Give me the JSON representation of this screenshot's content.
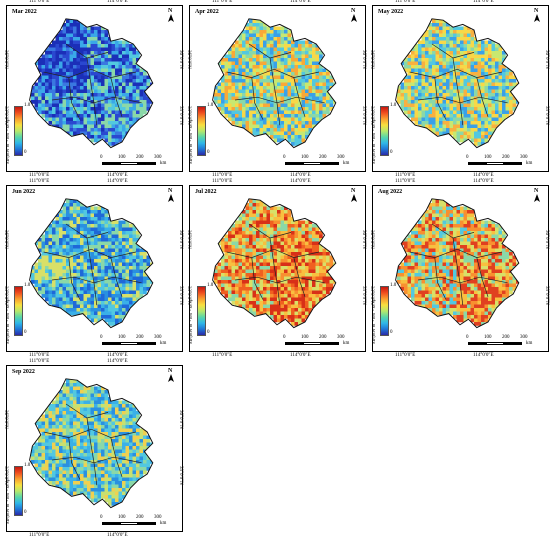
{
  "axes": {
    "top_left": "111°0′0″E",
    "top_right": "114°0′0″E",
    "lat_top": "36°0′0″N",
    "lat_bottom": "33°0′0″N"
  },
  "north_label": "N",
  "legend": {
    "max": "1.0",
    "min": "0",
    "unit": "SIF(mW m⁻² nm⁻¹ sr⁻¹)",
    "colors": [
      "#2a2aa8",
      "#1f78d8",
      "#2fb8e8",
      "#5ad7a8",
      "#b8e86a",
      "#f8e040",
      "#f8a030",
      "#f05020",
      "#c81810"
    ]
  },
  "scale_bar": {
    "ticks": [
      "0",
      "100",
      "200",
      "300"
    ],
    "unit": "km"
  },
  "panels": [
    {
      "title": "Mar 2022",
      "palette": [
        "#1b2fb8",
        "#2a48d0",
        "#3a78e0",
        "#3aa8e8",
        "#52c8e0",
        "#8ad8a8"
      ]
    },
    {
      "title": "Apr 2022",
      "palette": [
        "#3aa0e8",
        "#52c8e0",
        "#8ad8a8",
        "#c8e870",
        "#f8d848",
        "#f8a838"
      ]
    },
    {
      "title": "May 2022",
      "palette": [
        "#3aa0e8",
        "#52c8e0",
        "#8ad8a8",
        "#c8e870",
        "#f8d848",
        "#f8b040"
      ]
    },
    {
      "title": "Jun 2022",
      "palette": [
        "#1f68d8",
        "#2a90e0",
        "#3ab0e8",
        "#52c8e0",
        "#8ad8a8",
        "#d8e068"
      ]
    },
    {
      "title": "Jul 2022",
      "palette": [
        "#8ad8a8",
        "#d8e068",
        "#f8c040",
        "#f89030",
        "#f06020",
        "#d83018"
      ]
    },
    {
      "title": "Aug 2022",
      "palette": [
        "#52c8e0",
        "#8ad8a8",
        "#d8e068",
        "#f8c040",
        "#f89030",
        "#e04020"
      ]
    },
    {
      "title": "Sep 2022",
      "palette": [
        "#2a90e0",
        "#3ab0e8",
        "#52c8e0",
        "#8ad8a8",
        "#c8e070",
        "#f0d050"
      ]
    }
  ]
}
